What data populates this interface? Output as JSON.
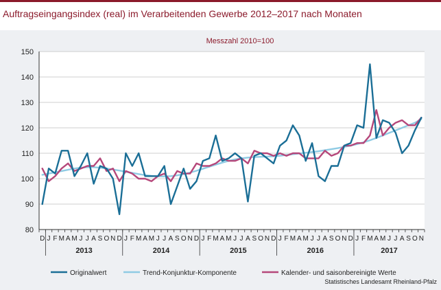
{
  "title": "Auftragseingangsindex (real) im Verarbeitenden Gewerbe 2012–2017 nach Monaten",
  "source": "Statistisches Landesamt Rheinland-Pfalz",
  "chart_data": {
    "type": "line",
    "subtitle": "Messzahl 2010=100",
    "ylim": [
      80,
      150
    ],
    "y_ticks": [
      80,
      90,
      100,
      110,
      120,
      130,
      140,
      150
    ],
    "grid": true,
    "legend_position": "bottom",
    "colors": {
      "title": "#8b1a2b",
      "subtitle": "#8b1a2b",
      "panel": "#eef0f3",
      "grid": "#bfbfbf"
    },
    "x": [
      "D",
      "J",
      "F",
      "M",
      "A",
      "M",
      "J",
      "J",
      "A",
      "S",
      "O",
      "N",
      "D",
      "J",
      "F",
      "M",
      "A",
      "M",
      "J",
      "J",
      "A",
      "S",
      "O",
      "N",
      "D",
      "J",
      "F",
      "M",
      "A",
      "M",
      "J",
      "J",
      "A",
      "S",
      "O",
      "N",
      "D",
      "J",
      "F",
      "M",
      "A",
      "M",
      "J",
      "J",
      "A",
      "S",
      "O",
      "N",
      "D",
      "J",
      "F",
      "M",
      "A",
      "M",
      "J",
      "J",
      "A",
      "S",
      "O",
      "N"
    ],
    "year_groups": [
      {
        "label": "2013",
        "start": 1,
        "end": 12
      },
      {
        "label": "2014",
        "start": 13,
        "end": 24
      },
      {
        "label": "2015",
        "start": 25,
        "end": 36
      },
      {
        "label": "2016",
        "start": 37,
        "end": 48
      },
      {
        "label": "2017",
        "start": 49,
        "end": 59
      }
    ],
    "series": [
      {
        "name": "Originalwert",
        "color": "#1a6e96",
        "values": [
          90,
          104,
          102,
          111,
          111,
          101,
          105,
          110,
          98,
          105,
          104,
          100,
          86,
          110,
          105,
          110,
          101,
          101,
          101,
          105,
          90,
          97,
          104,
          96,
          99,
          107,
          108,
          117,
          107,
          108,
          110,
          108,
          91,
          109,
          110,
          108,
          106,
          113,
          115,
          121,
          117,
          107,
          114,
          101,
          99,
          105,
          105,
          113,
          114,
          121,
          120,
          145,
          116,
          123,
          122,
          118,
          110,
          113,
          119,
          124
        ]
      },
      {
        "name": "Trend-Konjunktur-Komponente",
        "color": "#8fcbe4",
        "values": [
          101.5,
          102,
          102.5,
          103,
          103.5,
          104,
          104.3,
          104.5,
          104.5,
          104.3,
          104,
          103.6,
          103.2,
          102.7,
          102.3,
          101.8,
          101.4,
          101.1,
          100.9,
          100.9,
          101,
          101.3,
          101.8,
          102.4,
          103.1,
          103.9,
          104.7,
          105.5,
          106.3,
          107,
          107.6,
          108,
          108.3,
          108.5,
          108.6,
          108.7,
          108.8,
          109,
          109.3,
          109.6,
          109.9,
          110.2,
          110.5,
          110.8,
          111.2,
          111.6,
          112,
          112.5,
          113,
          113.6,
          114.3,
          115.1,
          116,
          117,
          118,
          119,
          120,
          121,
          122,
          123.5
        ]
      },
      {
        "name": "Kalender- und saisonbereinigte Werte",
        "color": "#b5477a",
        "values": [
          104,
          99,
          101,
          104,
          106,
          103,
          104,
          105,
          105,
          108,
          103,
          104,
          99,
          103,
          102,
          100,
          100,
          99,
          101,
          102,
          99,
          103,
          102,
          102,
          106,
          105,
          105,
          106,
          108,
          107,
          107,
          108,
          106,
          111,
          110,
          110,
          109,
          110,
          109,
          110,
          110,
          108,
          108,
          108,
          111,
          109,
          110,
          113,
          113,
          114,
          114,
          117,
          127,
          117,
          120,
          122,
          123,
          121,
          121,
          124
        ]
      }
    ]
  }
}
